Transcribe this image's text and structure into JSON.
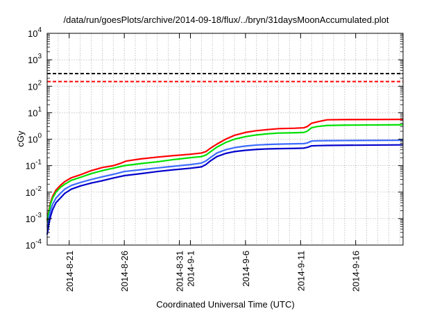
{
  "chart_data": {
    "type": "line",
    "title": "/data/run/goesPlots/archive/2014-09-18/flux/../bryn/31daysMoonAccumulated.plot",
    "xlabel": "Coordinated Universal Time (UTC)",
    "ylabel": "cGy",
    "y_scale": "log",
    "ylim": [
      0.0001,
      10000
    ],
    "xlim_days": [
      0,
      32.3
    ],
    "x_start_date": "2014-08-19",
    "grid": true,
    "y_ticks": [
      {
        "value": 0.0001,
        "base": "10",
        "exp": "-4"
      },
      {
        "value": 0.001,
        "base": "10",
        "exp": "-3"
      },
      {
        "value": 0.01,
        "base": "10",
        "exp": "-2"
      },
      {
        "value": 0.1,
        "base": "10",
        "exp": "-1"
      },
      {
        "value": 1,
        "base": "10",
        "exp": "0"
      },
      {
        "value": 10,
        "base": "10",
        "exp": "1"
      },
      {
        "value": 100,
        "base": "10",
        "exp": "2"
      },
      {
        "value": 1000,
        "base": "10",
        "exp": "3"
      },
      {
        "value": 10000,
        "base": "10",
        "exp": "4"
      }
    ],
    "x_ticks": [
      {
        "day": 2,
        "label": "2014-8-21"
      },
      {
        "day": 7,
        "label": "2014-8-26"
      },
      {
        "day": 12,
        "label": "2014-8-31"
      },
      {
        "day": 13,
        "label": "2014-9-1"
      },
      {
        "day": 18,
        "label": "2014-9-6"
      },
      {
        "day": 23,
        "label": "2014-9-11"
      },
      {
        "day": 28,
        "label": "2014-9-16"
      }
    ],
    "x_minor_grid_days": [
      0,
      1,
      2,
      3,
      4,
      5,
      6,
      7,
      8,
      9,
      10,
      11,
      12,
      13,
      14,
      15,
      16,
      17,
      18,
      19,
      20,
      21,
      22,
      23,
      24,
      25,
      26,
      27,
      28,
      29,
      30,
      31,
      32
    ],
    "reference_lines": [
      {
        "name": "black-threshold",
        "value": 300,
        "color": "#000000",
        "dash": "dashed"
      },
      {
        "name": "red-threshold",
        "value": 150,
        "color": "#ff0000",
        "dash": "dashed"
      }
    ],
    "series": [
      {
        "name": "red",
        "color": "#ff0000",
        "points": [
          [
            0,
            0.0009
          ],
          [
            0.15,
            0.002
          ],
          [
            0.3,
            0.004
          ],
          [
            0.5,
            0.007
          ],
          [
            0.8,
            0.012
          ],
          [
            1.2,
            0.018
          ],
          [
            1.6,
            0.025
          ],
          [
            2.2,
            0.035
          ],
          [
            3,
            0.045
          ],
          [
            4,
            0.065
          ],
          [
            5,
            0.085
          ],
          [
            6,
            0.1
          ],
          [
            6.6,
            0.12
          ],
          [
            7.2,
            0.15
          ],
          [
            8.5,
            0.18
          ],
          [
            10,
            0.21
          ],
          [
            11.5,
            0.24
          ],
          [
            13,
            0.27
          ],
          [
            14,
            0.3
          ],
          [
            14.4,
            0.34
          ],
          [
            14.8,
            0.45
          ],
          [
            15.4,
            0.65
          ],
          [
            16.2,
            1.0
          ],
          [
            17,
            1.4
          ],
          [
            18,
            1.8
          ],
          [
            19,
            2.1
          ],
          [
            20,
            2.3
          ],
          [
            21,
            2.5
          ],
          [
            22.5,
            2.6
          ],
          [
            23.3,
            2.7
          ],
          [
            23.6,
            3.0
          ],
          [
            24,
            4.0
          ],
          [
            24.5,
            4.5
          ],
          [
            25.4,
            5.4
          ],
          [
            27,
            5.5
          ],
          [
            32.3,
            5.6
          ]
        ]
      },
      {
        "name": "green",
        "color": "#00e000",
        "points": [
          [
            0,
            0.0008
          ],
          [
            0.15,
            0.0017
          ],
          [
            0.3,
            0.0035
          ],
          [
            0.5,
            0.006
          ],
          [
            0.8,
            0.01
          ],
          [
            1.2,
            0.015
          ],
          [
            1.6,
            0.02
          ],
          [
            2.2,
            0.028
          ],
          [
            3,
            0.036
          ],
          [
            4,
            0.05
          ],
          [
            5,
            0.065
          ],
          [
            6,
            0.08
          ],
          [
            7,
            0.1
          ],
          [
            8.5,
            0.12
          ],
          [
            10,
            0.14
          ],
          [
            11.5,
            0.17
          ],
          [
            13,
            0.2
          ],
          [
            14,
            0.22
          ],
          [
            14.4,
            0.25
          ],
          [
            14.8,
            0.33
          ],
          [
            15.4,
            0.5
          ],
          [
            16.2,
            0.75
          ],
          [
            17,
            1.0
          ],
          [
            18,
            1.25
          ],
          [
            19,
            1.45
          ],
          [
            20,
            1.6
          ],
          [
            21,
            1.7
          ],
          [
            22.5,
            1.75
          ],
          [
            23.3,
            1.8
          ],
          [
            23.6,
            2.0
          ],
          [
            24,
            2.7
          ],
          [
            24.5,
            3.0
          ],
          [
            25.4,
            3.3
          ],
          [
            27,
            3.4
          ],
          [
            32.3,
            3.5
          ]
        ]
      },
      {
        "name": "light-blue",
        "color": "#3b6bff",
        "points": [
          [
            0,
            0.0005
          ],
          [
            0.15,
            0.001
          ],
          [
            0.3,
            0.002
          ],
          [
            0.5,
            0.0035
          ],
          [
            0.8,
            0.006
          ],
          [
            1.2,
            0.009
          ],
          [
            1.6,
            0.013
          ],
          [
            2.2,
            0.018
          ],
          [
            3,
            0.023
          ],
          [
            4,
            0.03
          ],
          [
            5,
            0.038
          ],
          [
            6,
            0.047
          ],
          [
            7,
            0.06
          ],
          [
            8.5,
            0.07
          ],
          [
            10,
            0.082
          ],
          [
            11.5,
            0.095
          ],
          [
            13,
            0.11
          ],
          [
            14,
            0.125
          ],
          [
            14.4,
            0.15
          ],
          [
            14.8,
            0.2
          ],
          [
            15.4,
            0.3
          ],
          [
            16.2,
            0.4
          ],
          [
            17,
            0.48
          ],
          [
            18,
            0.55
          ],
          [
            19,
            0.6
          ],
          [
            20,
            0.63
          ],
          [
            21,
            0.65
          ],
          [
            22.5,
            0.67
          ],
          [
            23.3,
            0.68
          ],
          [
            23.6,
            0.72
          ],
          [
            24,
            0.85
          ],
          [
            24.5,
            0.87
          ],
          [
            25.4,
            0.88
          ],
          [
            27,
            0.89
          ],
          [
            32.3,
            0.91
          ]
        ]
      },
      {
        "name": "dark-blue",
        "color": "#0000cc",
        "points": [
          [
            0,
            0.00025
          ],
          [
            0.15,
            0.0006
          ],
          [
            0.3,
            0.0012
          ],
          [
            0.5,
            0.0022
          ],
          [
            0.8,
            0.004
          ],
          [
            1.2,
            0.006
          ],
          [
            1.6,
            0.009
          ],
          [
            2.2,
            0.013
          ],
          [
            3,
            0.017
          ],
          [
            4,
            0.022
          ],
          [
            5,
            0.027
          ],
          [
            6,
            0.034
          ],
          [
            7,
            0.042
          ],
          [
            8.5,
            0.05
          ],
          [
            10,
            0.06
          ],
          [
            11.5,
            0.07
          ],
          [
            13,
            0.08
          ],
          [
            14,
            0.09
          ],
          [
            14.4,
            0.11
          ],
          [
            14.8,
            0.15
          ],
          [
            15.4,
            0.22
          ],
          [
            16.2,
            0.29
          ],
          [
            17,
            0.34
          ],
          [
            18,
            0.38
          ],
          [
            19,
            0.41
          ],
          [
            20,
            0.43
          ],
          [
            21,
            0.44
          ],
          [
            22.5,
            0.45
          ],
          [
            23.3,
            0.46
          ],
          [
            23.6,
            0.49
          ],
          [
            24,
            0.56
          ],
          [
            24.5,
            0.57
          ],
          [
            25.4,
            0.58
          ],
          [
            27,
            0.59
          ],
          [
            32.3,
            0.61
          ]
        ]
      }
    ]
  }
}
